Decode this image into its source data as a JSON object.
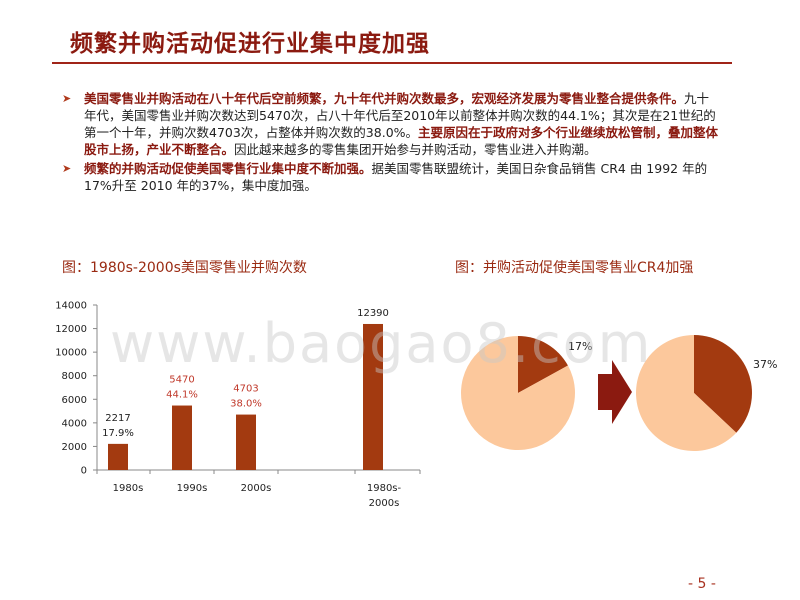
{
  "title": "频繁并购活动促进行业集中度加强",
  "bullets": [
    {
      "parts": [
        {
          "text": "美国零售业并购活动在八十年代后空前频繁，九十年代并购次数最多，宏观经济发展为零售业整合提供条件。",
          "bold": true
        },
        {
          "text": "九十年代，美国零售业并购次数达到5470次，占八十年代后至2010年以前整体并购次数的44.1%；其次是在21世纪的第一个十年，并购次数4703次，占整体并购次数的38.0%。",
          "bold": false
        },
        {
          "text": "主要原因在于政府对多个行业继续放松管制，叠加整体股市上扬，产业不断整合。",
          "bold": true
        },
        {
          "text": "因此越来越多的零售集团开始参与并购活动，零售业进入并购潮。",
          "bold": false
        }
      ]
    },
    {
      "parts": [
        {
          "text": "频繁的并购活动促使美国零售行业集中度不断加强。",
          "bold": true
        },
        {
          "text": "据美国零售联盟统计，美国日杂食品销售 CR4 由 1992 年的 17%升至 2010 年的37%，集中度加强。",
          "bold": false
        }
      ]
    }
  ],
  "captions": {
    "left": "图：1980s-2000s美国零售业并购次数",
    "right": "图：并购活动促使美国零售业CR4加强"
  },
  "watermark": "www.baogao8.com",
  "page_number": "- 5 -",
  "colors": {
    "bar": "#a33a10",
    "pie_dark": "#a33a10",
    "pie_light": "#fcc89c",
    "arrow": "#8b1a10",
    "accent": "#8b1a10"
  },
  "chart_data": [
    {
      "type": "bar",
      "categories": [
        "1980s",
        "1990s",
        "2000s",
        "1980s-2000s"
      ],
      "values": [
        2217,
        5470,
        4703,
        12390
      ],
      "data_labels": [
        [
          "2217",
          "17.9%"
        ],
        [
          "5470",
          "44.1%"
        ],
        [
          "4703",
          "38.0%"
        ],
        [
          "12390"
        ]
      ],
      "ylim": [
        0,
        14000
      ],
      "yticks": [
        0,
        2000,
        4000,
        6000,
        8000,
        10000,
        12000,
        14000
      ],
      "title": "",
      "xlabel": "",
      "ylabel": ""
    },
    {
      "type": "pie",
      "slices": [
        {
          "label": "17%",
          "value": 17
        },
        {
          "label": "",
          "value": 83
        }
      ]
    },
    {
      "type": "pie",
      "slices": [
        {
          "label": "37%",
          "value": 37
        },
        {
          "label": "",
          "value": 63
        }
      ]
    }
  ]
}
